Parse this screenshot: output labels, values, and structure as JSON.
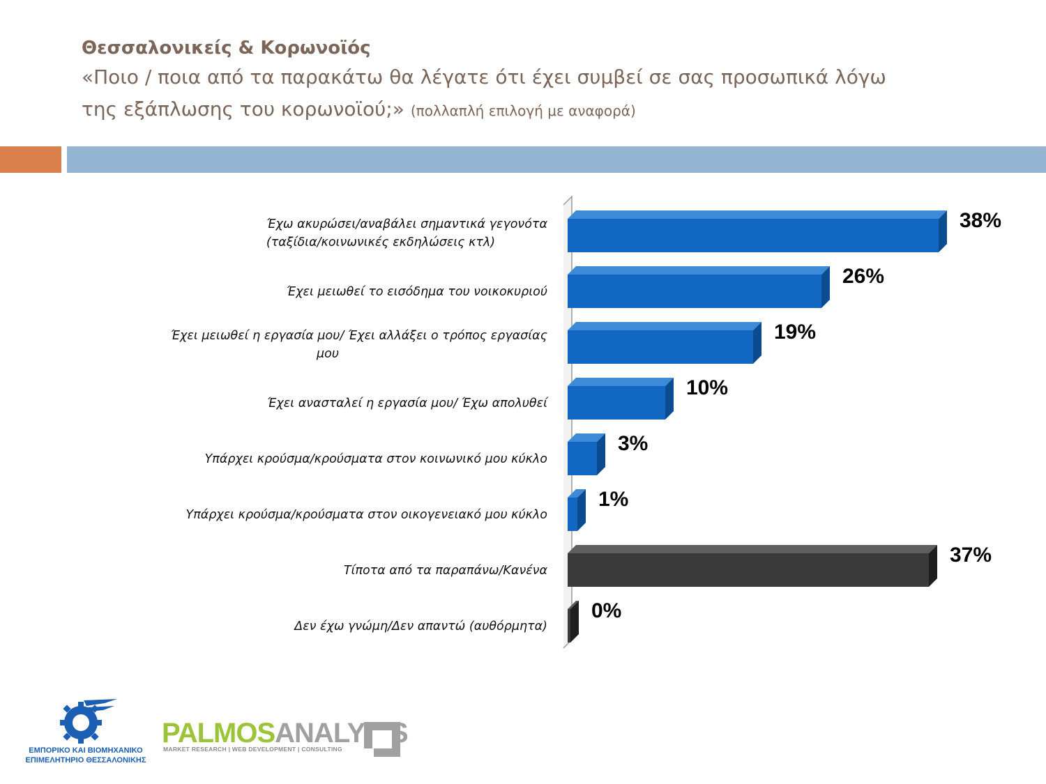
{
  "header": {
    "title": "Θεσσαλονικείς & Κορωνοϊός",
    "question_line1": "«Ποιο / ποια από τα παρακάτω θα λέγατε ότι έχει συμβεί σε σας προσωπικά λόγω",
    "question_line2": "της εξάπλωσης του κορωνοϊού;»",
    "question_note": "(πολλαπλή επιλογή με αναφορά)"
  },
  "colors": {
    "accent_band": "#d9804c",
    "main_band": "#94b4d2",
    "bar_blue": "#1167c2",
    "bar_dark": "#3a3a3a"
  },
  "chart_data": {
    "type": "bar",
    "orientation": "horizontal",
    "style": "3d",
    "categories": [
      [
        "Έχω ακυρώσει/αναβάλει σημαντικά γεγονότα",
        "(ταξίδια/κοινωνικές εκδηλώσεις κτλ)"
      ],
      [
        "Έχει μειωθεί το εισόδημα του νοικοκυριού"
      ],
      [
        "Έχει μειωθεί η εργασία μου/ Έχει αλλάξει ο τρόπος εργασίας",
        "μου"
      ],
      [
        "Έχει ανασταλεί η εργασία μου/ Έχω απολυθεί"
      ],
      [
        "Υπάρχει κρούσμα/κρούσματα στον κοινωνικό μου κύκλο"
      ],
      [
        "Υπάρχει κρούσμα/κρούσματα στον οικογενειακό μου κύκλο"
      ],
      [
        "Τίποτα από τα παραπάνω/Κανένα"
      ],
      [
        "Δεν έχω γνώμη/Δεν απαντώ (αυθόρμητα)"
      ]
    ],
    "values": [
      38,
      26,
      19,
      10,
      3,
      1,
      37,
      0
    ],
    "value_labels": [
      "38%",
      "26%",
      "19%",
      "10%",
      "3%",
      "1%",
      "37%",
      "0%"
    ],
    "bar_colors": [
      "blue",
      "blue",
      "blue",
      "blue",
      "blue",
      "blue",
      "dark",
      "dark"
    ],
    "xlim": [
      0,
      40
    ]
  },
  "logos": {
    "left_line1": "ΕΜΠΟΡΙΚΟ ΚΑΙ ΒΙΟΜΗΧΑΝΙΚΟ",
    "left_line2": "ΕΠΙΜΕΛΗΤΗΡΙΟ ΘΕΣΣΑΛΟΝΙΚΗΣ",
    "right_word1": "PALMOS",
    "right_word2": "ANALYSIS",
    "right_tagline": "MARKET RESEARCH | WEB DEVELOPMENT | CONSULTING"
  }
}
